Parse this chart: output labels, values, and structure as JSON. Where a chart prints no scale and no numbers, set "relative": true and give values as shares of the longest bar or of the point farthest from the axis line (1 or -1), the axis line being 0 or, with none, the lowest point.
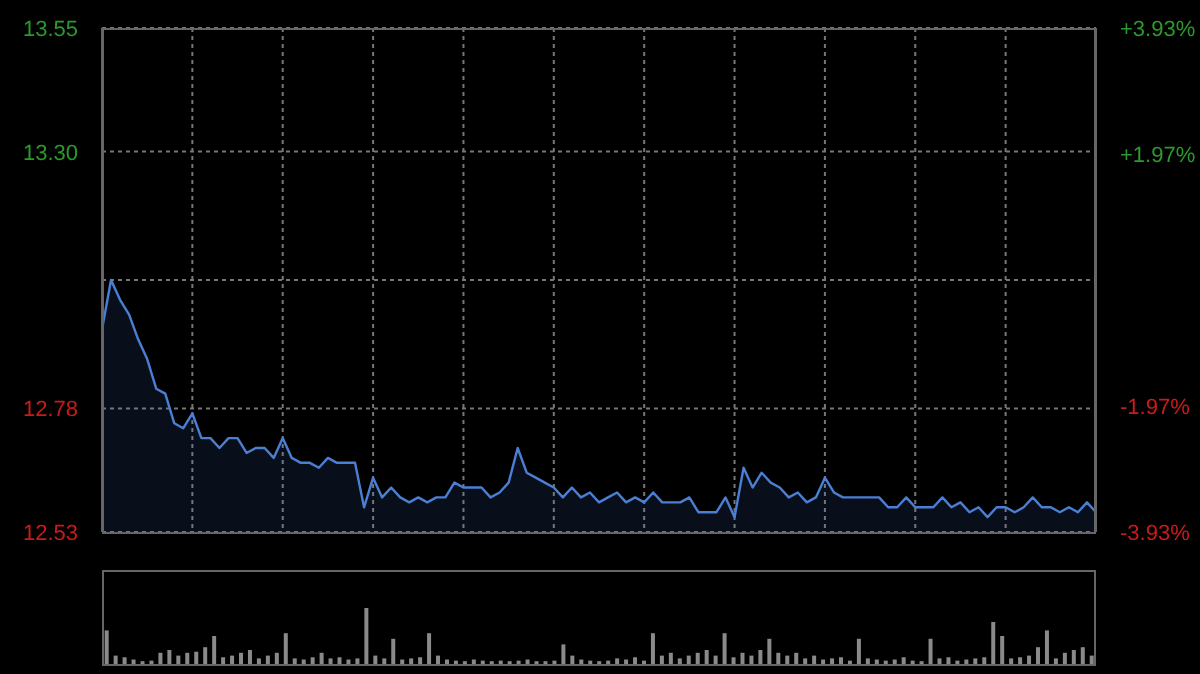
{
  "chart_data": [
    {
      "type": "area",
      "categories": [
        null,
        null,
        null,
        null,
        null,
        null,
        null,
        null,
        null,
        null,
        null,
        null,
        null,
        null,
        null,
        null,
        null,
        null,
        null,
        null,
        null,
        null,
        null,
        null,
        null,
        null,
        null,
        null,
        null,
        null,
        null,
        null,
        null,
        null,
        null,
        null,
        null,
        null,
        null,
        null,
        null,
        null,
        null,
        null,
        null,
        null,
        null,
        null,
        null,
        null,
        null,
        null,
        null,
        null,
        null,
        null,
        null,
        null,
        null,
        null,
        null,
        null,
        null,
        null,
        null,
        null,
        null,
        null,
        null,
        null,
        null,
        null,
        null,
        null,
        null,
        null,
        null,
        null,
        null,
        null,
        null,
        null,
        null,
        null,
        null,
        null,
        null,
        null,
        null,
        null,
        null,
        null,
        null,
        null,
        null,
        null,
        null,
        null,
        null,
        null,
        null,
        null,
        null,
        null,
        null,
        null,
        null,
        null,
        null,
        null,
        null
      ],
      "series": [
        {
          "color": "#4a7fd4",
          "values": [
            12.94,
            13.04,
            13.0,
            12.97,
            12.92,
            12.88,
            12.82,
            12.81,
            12.75,
            12.74,
            12.77,
            12.72,
            12.72,
            12.7,
            12.72,
            12.72,
            12.69,
            12.7,
            12.7,
            12.68,
            12.72,
            12.68,
            12.67,
            12.67,
            12.66,
            12.68,
            12.67,
            12.67,
            12.67,
            12.58,
            12.64,
            12.6,
            12.62,
            12.6,
            12.59,
            12.6,
            12.59,
            12.6,
            12.6,
            12.63,
            12.62,
            12.62,
            12.62,
            12.6,
            12.61,
            12.63,
            12.7,
            12.65,
            12.64,
            12.63,
            12.62,
            12.6,
            12.62,
            12.6,
            12.61,
            12.59,
            12.6,
            12.61,
            12.59,
            12.6,
            12.59,
            12.61,
            12.59,
            12.59,
            12.59,
            12.6,
            12.57,
            12.57,
            12.57,
            12.6,
            12.56,
            12.66,
            12.62,
            12.65,
            12.63,
            12.62,
            12.6,
            12.61,
            12.59,
            12.6,
            12.64,
            12.61,
            12.6,
            12.6,
            12.6,
            12.6,
            12.6,
            12.58,
            12.58,
            12.6,
            12.58,
            12.58,
            12.58,
            12.6,
            12.58,
            12.59,
            12.57,
            12.58,
            12.56,
            12.58,
            12.58,
            12.57,
            12.58,
            12.6,
            12.58,
            12.58,
            12.57,
            12.58,
            12.57,
            12.59,
            12.57
          ]
        }
      ],
      "ylim": [
        12.53,
        13.55
      ],
      "yticks": [
        12.53,
        12.78,
        {
          "value": 13.04,
          "label": null
        },
        {
          "value": 13.3,
          "label": "13.30"
        },
        13.55
      ],
      "y2lim": [
        -3.93,
        3.93
      ],
      "y2ticks": [
        {
          "value": -3.93,
          "label": "-3.93%"
        },
        {
          "value": -1.97,
          "label": "-1.97%"
        },
        {
          "value": 0,
          "label": null
        },
        {
          "value": 1.97,
          "label": "+1.97%"
        },
        {
          "value": 3.93,
          "label": "+3.93%"
        }
      ],
      "grid": true
    },
    {
      "type": "bar",
      "relative": true,
      "categories": [
        null,
        null,
        null,
        null,
        null,
        null,
        null,
        null,
        null,
        null,
        null,
        null,
        null,
        null,
        null,
        null,
        null,
        null,
        null,
        null,
        null,
        null,
        null,
        null,
        null,
        null,
        null,
        null,
        null,
        null,
        null,
        null,
        null,
        null,
        null,
        null,
        null,
        null,
        null,
        null,
        null,
        null,
        null,
        null,
        null,
        null,
        null,
        null,
        null,
        null,
        null,
        null,
        null,
        null,
        null,
        null,
        null,
        null,
        null,
        null,
        null,
        null,
        null,
        null,
        null,
        null,
        null,
        null,
        null,
        null,
        null,
        null,
        null,
        null,
        null,
        null,
        null,
        null,
        null,
        null,
        null,
        null,
        null,
        null,
        null,
        null,
        null,
        null,
        null,
        null,
        null,
        null,
        null,
        null,
        null,
        null,
        null,
        null,
        null,
        null,
        null,
        null,
        null,
        null,
        null,
        null,
        null,
        null,
        null,
        null,
        null
      ],
      "series": [
        {
          "color": "#8a8a8a",
          "values": [
            0.6,
            0.15,
            0.12,
            0.08,
            0.05,
            0.06,
            0.2,
            0.25,
            0.15,
            0.2,
            0.22,
            0.3,
            0.5,
            0.12,
            0.15,
            0.2,
            0.25,
            0.1,
            0.15,
            0.2,
            0.55,
            0.1,
            0.08,
            0.12,
            0.2,
            0.1,
            0.12,
            0.08,
            0.1,
            1.0,
            0.15,
            0.1,
            0.45,
            0.08,
            0.1,
            0.12,
            0.55,
            0.15,
            0.08,
            0.06,
            0.05,
            0.08,
            0.06,
            0.05,
            0.06,
            0.05,
            0.06,
            0.08,
            0.05,
            0.05,
            0.06,
            0.35,
            0.15,
            0.08,
            0.06,
            0.05,
            0.06,
            0.1,
            0.08,
            0.12,
            0.06,
            0.55,
            0.15,
            0.2,
            0.1,
            0.15,
            0.2,
            0.25,
            0.15,
            0.55,
            0.12,
            0.2,
            0.15,
            0.25,
            0.45,
            0.2,
            0.15,
            0.2,
            0.1,
            0.15,
            0.08,
            0.1,
            0.12,
            0.06,
            0.45,
            0.1,
            0.08,
            0.06,
            0.08,
            0.12,
            0.06,
            0.05,
            0.45,
            0.1,
            0.12,
            0.06,
            0.08,
            0.1,
            0.12,
            0.75,
            0.5,
            0.1,
            0.12,
            0.15,
            0.3,
            0.6,
            0.1,
            0.2,
            0.25,
            0.3,
            0.15
          ]
        }
      ]
    }
  ]
}
